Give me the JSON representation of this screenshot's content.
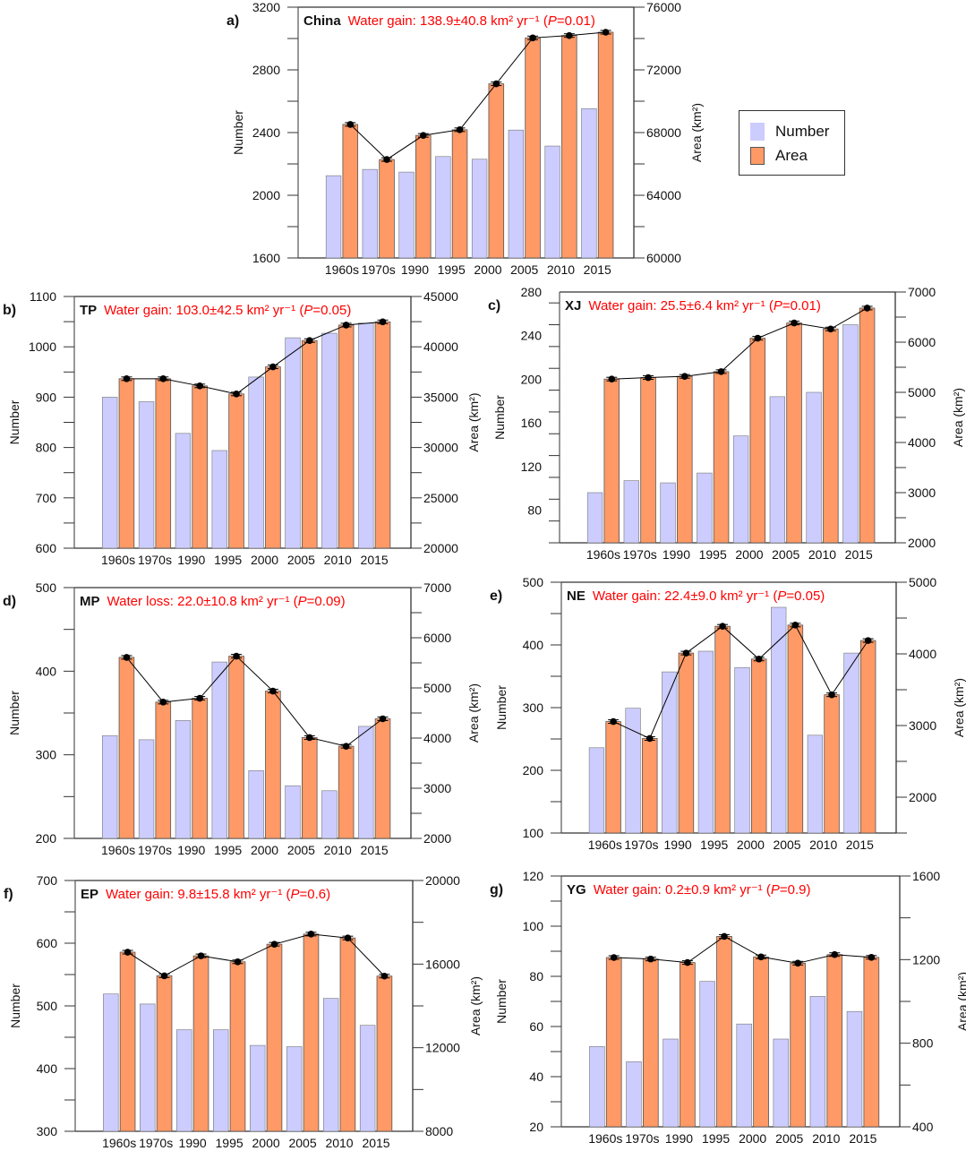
{
  "legend": {
    "items": [
      {
        "label": "Number",
        "color": "#CCCCFF"
      },
      {
        "label": "Area",
        "color": "#FF9966"
      }
    ]
  },
  "colors": {
    "number": "#CCCCFF",
    "area": "#FF9966",
    "line": "#000000",
    "annotation": "#FF0000"
  },
  "chart_data": [
    {
      "id": "a",
      "panel_label": "a)",
      "type": "bar+line",
      "region": "China",
      "annotation": {
        "prefix": "Water gain: 138.9±40.8 km² yr⁻¹ (",
        "p": "P",
        "suffix": "=0.01)"
      },
      "categories": [
        "1960s",
        "1970s",
        "1990",
        "1995",
        "2000",
        "2005",
        "2010",
        "2015"
      ],
      "ylabel_left": "Number",
      "ylabel_right": "Area (km²)",
      "ylim_left": [
        1600,
        3200
      ],
      "ticks_left": [
        1600,
        2000,
        2400,
        2800,
        3200
      ],
      "minor_left": 200,
      "ylim_right": [
        60000,
        76000
      ],
      "ticks_right": [
        60000,
        64000,
        68000,
        72000,
        76000
      ],
      "minor_right": 2000,
      "series": [
        {
          "name": "Number",
          "axis": "left",
          "type": "bar",
          "values": [
            2125,
            2165,
            2148,
            2247,
            2230,
            2416,
            2314,
            2553
          ]
        },
        {
          "name": "Area",
          "axis": "right",
          "type": "bar+line",
          "values": [
            68520,
            66280,
            67820,
            68180,
            71110,
            74040,
            74190,
            74400
          ]
        }
      ]
    },
    {
      "id": "b",
      "panel_label": "b)",
      "type": "bar+line",
      "region": "TP",
      "annotation": {
        "prefix": "Water gain: 103.0±42.5 km² yr⁻¹ (",
        "p": "P",
        "suffix": "=0.05)"
      },
      "categories": [
        "1960s",
        "1970s",
        "1990",
        "1995",
        "2000",
        "2005",
        "2010",
        "2015"
      ],
      "ylabel_left": "Number",
      "ylabel_right": "Area (km²)",
      "ylim_left": [
        600,
        1100
      ],
      "ticks_left": [
        600,
        700,
        800,
        900,
        1000,
        1100
      ],
      "minor_left": 50,
      "ylim_right": [
        20000,
        45000
      ],
      "ticks_right": [
        20000,
        25000,
        30000,
        35000,
        40000,
        45000
      ],
      "minor_right": 2500,
      "series": [
        {
          "name": "Number",
          "axis": "left",
          "type": "bar",
          "values": [
            900,
            891,
            828,
            794,
            940,
            1018,
            1027,
            1047
          ]
        },
        {
          "name": "Area",
          "axis": "right",
          "type": "bar+line",
          "values": [
            36830,
            36830,
            36120,
            35320,
            38010,
            40620,
            42160,
            42480
          ]
        }
      ]
    },
    {
      "id": "c",
      "panel_label": "c)",
      "type": "bar+line",
      "region": "XJ",
      "annotation": {
        "prefix": "Water gain: 25.5±6.4 km² yr⁻¹  (",
        "p": "P",
        "suffix": "=0.01)"
      },
      "categories": [
        "1960s",
        "1970s",
        "1990",
        "1995",
        "2000",
        "2005",
        "2010",
        "2015"
      ],
      "ylabel_left": "Number",
      "ylabel_right": "Area (km²)",
      "ylim_left": [
        50,
        280
      ],
      "ticks_left": [
        80,
        120,
        160,
        200,
        240,
        280
      ],
      "minor_left": 20,
      "ylim_right": [
        2000,
        7000
      ],
      "ticks_right": [
        2000,
        3000,
        4000,
        5000,
        6000,
        7000
      ],
      "minor_right": 500,
      "series": [
        {
          "name": "Number",
          "axis": "left",
          "type": "bar",
          "values": [
            96,
            107,
            105,
            114,
            148,
            184,
            188,
            250
          ]
        },
        {
          "name": "Area",
          "axis": "right",
          "type": "bar+line",
          "values": [
            5264,
            5294,
            5318,
            5413,
            6079,
            6382,
            6263,
            6679
          ]
        }
      ]
    },
    {
      "id": "d",
      "panel_label": "d)",
      "type": "bar+line",
      "region": "MP",
      "annotation": {
        "prefix": "Water loss: 22.0±10.8 km² yr⁻¹ (",
        "p": "P",
        "suffix": "=0.09)"
      },
      "categories": [
        "1960s",
        "1970s",
        "1990",
        "1995",
        "2000",
        "2005",
        "2010",
        "2015"
      ],
      "ylabel_left": "Number",
      "ylabel_right": "Area (km²)",
      "ylim_left": [
        200,
        500
      ],
      "ticks_left": [
        200,
        300,
        400,
        500
      ],
      "minor_left": 50,
      "ylim_right": [
        2000,
        7000
      ],
      "ticks_right": [
        2000,
        3000,
        4000,
        5000,
        6000,
        7000
      ],
      "minor_right": 500,
      "series": [
        {
          "name": "Number",
          "axis": "left",
          "type": "bar",
          "values": [
            323,
            318,
            341,
            411,
            281,
            263,
            257,
            334
          ]
        },
        {
          "name": "Area",
          "axis": "right",
          "type": "bar+line",
          "values": [
            5609,
            4717,
            4794,
            5633,
            4937,
            4010,
            3837,
            4384
          ]
        }
      ]
    },
    {
      "id": "e",
      "panel_label": "e)",
      "type": "bar+line",
      "region": "NE",
      "annotation": {
        "prefix": "Water gain: 22.4±9.0 km² yr⁻¹ (",
        "p": "P",
        "suffix": "=0.05)"
      },
      "categories": [
        "1960s",
        "1970s",
        "1990",
        "1995",
        "2000",
        "2005",
        "2010",
        "2015"
      ],
      "ylabel_left": "Number",
      "ylabel_right": "Area (km²)",
      "ylim_left": [
        100,
        500
      ],
      "ticks_left": [
        100,
        200,
        300,
        400,
        500
      ],
      "minor_left": 50,
      "ylim_right": [
        1500,
        5000
      ],
      "ticks_right": [
        2000,
        3000,
        4000,
        5000
      ],
      "minor_right": 500,
      "series": [
        {
          "name": "Number",
          "axis": "left",
          "type": "bar",
          "values": [
            236,
            299,
            357,
            390,
            364,
            460,
            256,
            387
          ]
        },
        {
          "name": "Area",
          "axis": "right",
          "type": "bar+line",
          "values": [
            3055,
            2819,
            4011,
            4385,
            3928,
            4402,
            3429,
            4186
          ]
        }
      ]
    },
    {
      "id": "f",
      "panel_label": "f)",
      "type": "bar+line",
      "region": "EP",
      "annotation": {
        "prefix": "Water gain: 9.8±15.8 km² yr⁻¹  (",
        "p": "P",
        "suffix": "=0.6)"
      },
      "categories": [
        "1960s",
        "1970s",
        "1990",
        "1995",
        "2000",
        "2005",
        "2010",
        "2015"
      ],
      "ylabel_left": "Number",
      "ylabel_right": "Area (km²)",
      "ylim_left": [
        300,
        700
      ],
      "ticks_left": [
        300,
        400,
        500,
        600,
        700
      ],
      "minor_left": 50,
      "ylim_right": [
        8000,
        20000
      ],
      "ticks_right": [
        8000,
        12000,
        16000,
        20000
      ],
      "minor_right": 2000,
      "series": [
        {
          "name": "Number",
          "axis": "left",
          "type": "bar",
          "values": [
            519,
            503,
            462,
            462,
            437,
            435,
            512,
            469
          ]
        },
        {
          "name": "Area",
          "axis": "right",
          "type": "bar+line",
          "values": [
            16570,
            15440,
            16395,
            16110,
            16950,
            17435,
            17250,
            15425
          ]
        }
      ]
    },
    {
      "id": "g",
      "panel_label": "g)",
      "type": "bar+line",
      "region": "YG",
      "annotation": {
        "prefix": "Water gain: 0.2±0.9 km² yr⁻¹ (",
        "p": "P",
        "suffix": "=0.9)"
      },
      "categories": [
        "1960s",
        "1970s",
        "1990",
        "1995",
        "2000",
        "2005",
        "2010",
        "2015"
      ],
      "ylabel_left": "Number",
      "ylabel_right": "Area (km²)",
      "ylim_left": [
        20,
        120
      ],
      "ticks_left": [
        20,
        40,
        60,
        80,
        100,
        120
      ],
      "minor_left": 10,
      "ylim_right": [
        400,
        1600
      ],
      "ticks_right": [
        400,
        800,
        1200,
        1600
      ],
      "minor_right": 200,
      "series": [
        {
          "name": "Number",
          "axis": "left",
          "type": "bar",
          "values": [
            52,
            46,
            55,
            78,
            61,
            55,
            72,
            66
          ]
        },
        {
          "name": "Area",
          "axis": "right",
          "type": "bar+line",
          "values": [
            1210,
            1203,
            1186,
            1311,
            1213,
            1183,
            1224,
            1211
          ]
        }
      ]
    }
  ]
}
